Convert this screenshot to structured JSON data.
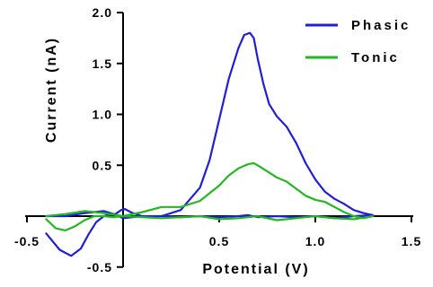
{
  "chart_data": {
    "type": "line",
    "xlabel": "Potential (V)",
    "ylabel": "Current (nA)",
    "xlim": [
      -0.5,
      1.5
    ],
    "ylim": [
      -0.5,
      2.0
    ],
    "x_ticks": [
      -0.5,
      0.5,
      1.0,
      1.5
    ],
    "x_tick_labels": [
      "-0.5",
      "0.5",
      "1.0",
      "1.5"
    ],
    "y_ticks": [
      -0.5,
      0.5,
      1.0,
      1.5,
      2.0
    ],
    "y_tick_labels": [
      "-0.5",
      "0.5",
      "1.0",
      "1.5",
      "2.0"
    ],
    "grid": false,
    "legend_position": "top-right",
    "series": [
      {
        "name": "Phasic",
        "color": "#1f1fd6",
        "x": [
          -0.4,
          -0.33,
          -0.27,
          -0.22,
          -0.18,
          -0.14,
          -0.1,
          -0.07,
          -0.04,
          -0.01,
          0.01,
          0.05,
          0.1,
          0.2,
          0.3,
          0.4,
          0.45,
          0.5,
          0.55,
          0.6,
          0.63,
          0.66,
          0.68,
          0.7,
          0.73,
          0.76,
          0.8,
          0.85,
          0.9,
          0.95,
          1.0,
          1.05,
          1.1,
          1.15,
          1.2,
          1.25,
          1.3,
          1.2,
          1.1,
          1.0,
          0.9,
          0.8,
          0.7,
          0.65,
          0.6,
          0.5,
          0.4,
          0.3,
          0.2,
          0.1,
          0.05,
          0.0,
          -0.05,
          -0.1,
          -0.2,
          -0.3,
          -0.4
        ],
        "y": [
          -0.17,
          -0.33,
          -0.39,
          -0.32,
          -0.18,
          -0.06,
          0.0,
          0.02,
          0.02,
          0.06,
          0.07,
          0.03,
          0.0,
          0.0,
          0.06,
          0.28,
          0.55,
          0.95,
          1.35,
          1.65,
          1.78,
          1.8,
          1.75,
          1.55,
          1.3,
          1.1,
          0.98,
          0.88,
          0.72,
          0.52,
          0.36,
          0.24,
          0.17,
          0.12,
          0.06,
          0.03,
          0.01,
          0.0,
          -0.02,
          0.0,
          -0.01,
          0.0,
          -0.01,
          0.01,
          0.0,
          -0.01,
          0.0,
          -0.01,
          0.0,
          0.0,
          -0.01,
          -0.02,
          0.02,
          0.05,
          0.03,
          0.0,
          0.0
        ]
      },
      {
        "name": "Tonic",
        "color": "#22b822",
        "x": [
          -0.4,
          -0.35,
          -0.3,
          -0.25,
          -0.2,
          -0.15,
          -0.1,
          -0.05,
          0.0,
          0.05,
          0.1,
          0.2,
          0.3,
          0.4,
          0.5,
          0.55,
          0.6,
          0.65,
          0.68,
          0.7,
          0.75,
          0.8,
          0.85,
          0.9,
          0.95,
          1.0,
          1.05,
          1.1,
          1.15,
          1.2,
          1.25,
          1.3,
          1.2,
          1.1,
          1.0,
          0.9,
          0.8,
          0.7,
          0.6,
          0.5,
          0.4,
          0.3,
          0.2,
          0.1,
          0.0,
          -0.1,
          -0.2,
          -0.3,
          -0.4
        ],
        "y": [
          -0.03,
          -0.12,
          -0.14,
          -0.1,
          -0.04,
          0.0,
          0.0,
          -0.01,
          0.0,
          0.02,
          0.04,
          0.09,
          0.09,
          0.15,
          0.3,
          0.4,
          0.47,
          0.51,
          0.52,
          0.5,
          0.44,
          0.38,
          0.34,
          0.27,
          0.2,
          0.16,
          0.14,
          0.09,
          0.04,
          0.0,
          -0.02,
          0.0,
          -0.03,
          -0.02,
          0.0,
          -0.02,
          -0.04,
          0.0,
          -0.02,
          -0.03,
          0.0,
          -0.01,
          -0.02,
          -0.01,
          0.0,
          0.03,
          0.05,
          0.02,
          0.0
        ]
      }
    ]
  }
}
